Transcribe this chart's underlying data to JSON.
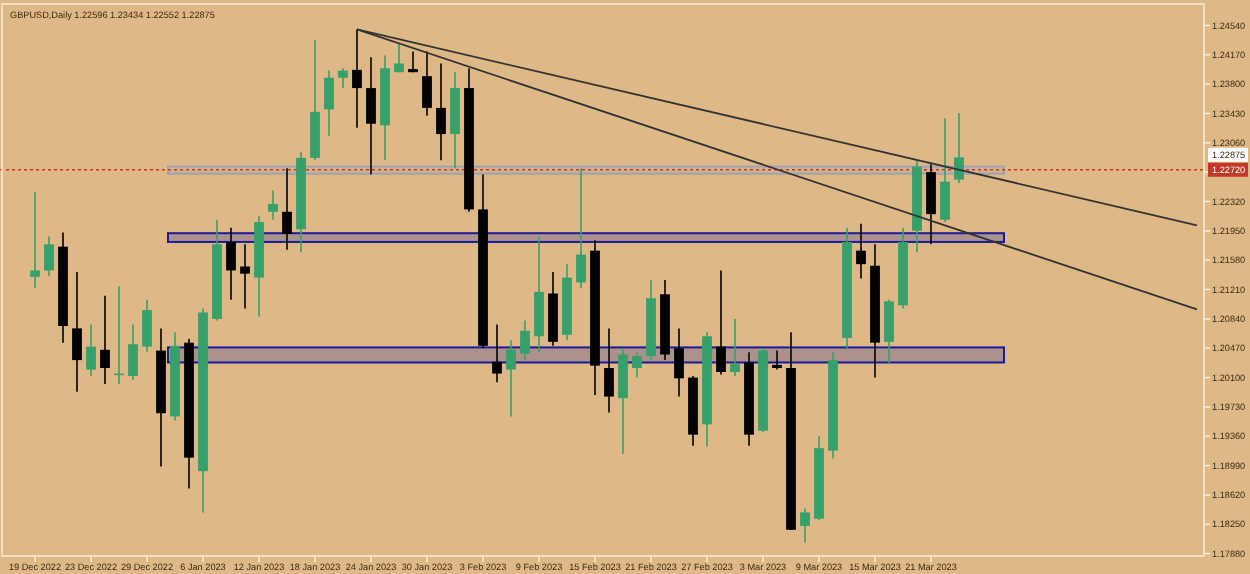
{
  "chart_data": {
    "type": "candlestick",
    "title": "GBPUSD,Daily 1.22596 1.23434 1.22552 1.22875",
    "categories": [
      "19 Dec 2022",
      null,
      null,
      null,
      "23 Dec 2022",
      null,
      null,
      null,
      "29 Dec 2022",
      null,
      null,
      null,
      "6 Jan 2023",
      null,
      null,
      null,
      "12 Jan 2023",
      null,
      null,
      null,
      "18 Jan 2023",
      null,
      null,
      null,
      "24 Jan 2023",
      null,
      null,
      null,
      "30 Jan 2023",
      null,
      null,
      null,
      "3 Feb 2023",
      null,
      null,
      null,
      "9 Feb 2023",
      null,
      null,
      null,
      "15 Feb 2023",
      null,
      null,
      null,
      "21 Feb 2023",
      null,
      null,
      null,
      "27 Feb 2023",
      null,
      null,
      null,
      "3 Mar 2023",
      null,
      null,
      null,
      "9 Mar 2023",
      null,
      null,
      null,
      "15 Mar 2023",
      null,
      null,
      null,
      "21 Mar 2023",
      null,
      null,
      null,
      null,
      null,
      null,
      null,
      null,
      null,
      null,
      null,
      null,
      null,
      null,
      null,
      null,
      null,
      null,
      null
    ],
    "ohlc": [
      [
        1.2137,
        1.2244,
        1.2123,
        1.2145
      ],
      [
        1.2145,
        1.2188,
        1.2138,
        1.2178
      ],
      [
        1.2175,
        1.2193,
        1.2054,
        1.2075
      ],
      [
        1.2072,
        1.2143,
        1.1992,
        1.2032
      ],
      [
        1.202,
        1.2077,
        1.2012,
        1.2049
      ],
      [
        1.2045,
        1.2113,
        1.2002,
        1.2022
      ],
      [
        1.2013,
        1.2125,
        1.2002,
        1.2015
      ],
      [
        1.2012,
        1.2077,
        1.2007,
        1.2052
      ],
      [
        1.2049,
        1.2108,
        1.2042,
        1.2095
      ],
      [
        1.2044,
        1.2072,
        1.1898,
        1.1965
      ],
      [
        1.1961,
        1.2067,
        1.1956,
        1.205
      ],
      [
        1.2054,
        1.2059,
        1.187,
        1.1909
      ],
      [
        1.1892,
        1.2097,
        1.184,
        1.2092
      ],
      [
        1.2084,
        1.2209,
        1.2082,
        1.2178
      ],
      [
        1.2181,
        1.2199,
        1.2108,
        1.2145
      ],
      [
        1.215,
        1.2178,
        1.2097,
        1.2141
      ],
      [
        1.2136,
        1.2214,
        1.2087,
        1.2206
      ],
      [
        1.2219,
        1.2246,
        1.2209,
        1.2229
      ],
      [
        1.2219,
        1.2274,
        1.2171,
        1.2191
      ],
      [
        1.2197,
        1.2294,
        1.2168,
        1.2287
      ],
      [
        1.2287,
        1.2436,
        1.2284,
        1.2345
      ],
      [
        1.2348,
        1.2397,
        1.2315,
        1.2388
      ],
      [
        1.2388,
        1.24,
        1.2375,
        1.2397
      ],
      [
        1.2398,
        1.2449,
        1.2325,
        1.2375
      ],
      [
        1.2375,
        1.2414,
        1.2266,
        1.233
      ],
      [
        1.2328,
        1.2416,
        1.2284,
        1.24
      ],
      [
        1.2395,
        1.2431,
        1.2395,
        1.2406
      ],
      [
        1.2399,
        1.2421,
        1.2395,
        1.2395
      ],
      [
        1.239,
        1.2421,
        1.234,
        1.235
      ],
      [
        1.235,
        1.2406,
        1.2284,
        1.2317
      ],
      [
        1.2317,
        1.2395,
        1.2274,
        1.2375
      ],
      [
        1.2375,
        1.24,
        1.2219,
        1.2222
      ],
      [
        1.2222,
        1.2266,
        1.2047,
        1.205
      ],
      [
        1.203,
        1.2077,
        1.2004,
        1.2015
      ],
      [
        1.202,
        1.2057,
        1.1961,
        1.2045
      ],
      [
        1.204,
        1.2082,
        1.2032,
        1.2069
      ],
      [
        1.2062,
        1.2188,
        1.2042,
        1.2118
      ],
      [
        1.2116,
        1.2143,
        1.205,
        1.2055
      ],
      [
        1.2064,
        1.2153,
        1.2057,
        1.2136
      ],
      [
        1.213,
        1.2274,
        1.2123,
        1.2165
      ],
      [
        1.217,
        1.2183,
        1.1988,
        1.2025
      ],
      [
        1.2022,
        1.2072,
        1.1966,
        1.1986
      ],
      [
        1.1984,
        1.2047,
        1.1914,
        1.2039
      ],
      [
        1.2022,
        1.2042,
        1.201,
        1.2037
      ],
      [
        1.2037,
        1.2133,
        1.2032,
        1.211
      ],
      [
        1.2115,
        1.2133,
        1.2032,
        1.2039
      ],
      [
        1.2047,
        1.2072,
        1.1986,
        1.2009
      ],
      [
        1.201,
        1.2012,
        1.1924,
        1.1938
      ],
      [
        1.1951,
        1.2067,
        1.1923,
        1.2062
      ],
      [
        1.2049,
        1.2145,
        1.2014,
        1.2017
      ],
      [
        1.2017,
        1.2084,
        1.2012,
        1.2027
      ],
      [
        1.2029,
        1.2042,
        1.1924,
        1.1938
      ],
      [
        1.1943,
        1.2047,
        1.1941,
        1.2044
      ],
      [
        1.2026,
        1.2044,
        1.202,
        1.2022
      ],
      [
        1.2022,
        1.2067,
        1.1818,
        1.1818
      ],
      [
        1.1823,
        1.1845,
        1.1802,
        1.184
      ],
      [
        1.1832,
        1.1936,
        1.183,
        1.1921
      ],
      [
        1.1918,
        1.2042,
        1.1908,
        1.2032
      ],
      [
        1.206,
        1.2199,
        1.2047,
        1.2181
      ],
      [
        1.217,
        1.2204,
        1.2135,
        1.2153
      ],
      [
        1.2151,
        1.2178,
        1.201,
        1.2054
      ],
      [
        1.2055,
        1.2108,
        1.2027,
        1.2106
      ],
      [
        1.2101,
        1.2199,
        1.2097,
        1.2181
      ],
      [
        1.2195,
        1.2284,
        1.2168,
        1.2276
      ],
      [
        1.2269,
        1.2279,
        1.2178,
        1.2216
      ],
      [
        1.2209,
        1.2337,
        1.2206,
        1.2257
      ],
      [
        1.22596,
        1.23434,
        1.22552,
        1.22875
      ],
      null,
      null,
      null,
      null,
      null,
      null,
      null,
      null,
      null,
      null,
      null,
      null,
      null,
      null,
      null,
      null,
      null
    ],
    "colors": [
      "#36a06a",
      "#36a06a",
      "#000000",
      "#000000",
      "#36a06a",
      "#000000",
      "#36a06a",
      "#36a06a",
      "#36a06a",
      "#000000",
      "#36a06a",
      "#000000",
      "#36a06a",
      "#36a06a",
      "#000000",
      "#000000",
      "#36a06a",
      "#36a06a",
      "#000000",
      "#36a06a",
      "#36a06a",
      "#36a06a",
      "#36a06a",
      "#000000",
      "#000000",
      "#36a06a",
      "#36a06a",
      "#000000",
      "#000000",
      "#000000",
      "#36a06a",
      "#000000",
      "#000000",
      "#000000",
      "#36a06a",
      "#36a06a",
      "#36a06a",
      "#000000",
      "#36a06a",
      "#36a06a",
      "#000000",
      "#000000",
      "#36a06a",
      "#36a06a",
      "#36a06a",
      "#000000",
      "#000000",
      "#000000",
      "#36a06a",
      "#000000",
      "#36a06a",
      "#000000",
      "#36a06a",
      "#000000",
      "#000000",
      "#36a06a",
      "#36a06a",
      "#36a06a",
      "#36a06a",
      "#000000",
      "#000000",
      "#36a06a",
      "#36a06a",
      "#36a06a",
      "#000000",
      "#36a06a",
      "#36a06a",
      null,
      null,
      null,
      null,
      null,
      null,
      null,
      null,
      null,
      null,
      null,
      null,
      null,
      null,
      null,
      null,
      null
    ],
    "series": [
      {
        "type": "line",
        "color": "#333333",
        "values": [
          null,
          null,
          null,
          null,
          null,
          null,
          null,
          null,
          null,
          null,
          null,
          null,
          null,
          null,
          null,
          null,
          null,
          null,
          null,
          null,
          null,
          null,
          null,
          1.2449,
          null,
          null,
          null,
          null,
          null,
          null,
          null,
          null,
          null,
          null,
          null,
          null,
          null,
          null,
          null,
          null,
          null,
          null,
          null,
          null,
          null,
          null,
          null,
          null,
          null,
          null,
          null,
          null,
          null,
          null,
          null,
          null,
          null,
          null,
          null,
          null,
          null,
          null,
          null,
          null,
          null,
          null,
          null,
          null,
          null,
          null,
          null,
          null,
          null,
          null,
          null,
          null,
          null,
          null,
          null,
          null,
          null,
          null,
          null,
          1.2202
        ]
      },
      {
        "type": "line",
        "color": "#333333",
        "values": [
          null,
          null,
          null,
          null,
          null,
          null,
          null,
          null,
          null,
          null,
          null,
          null,
          null,
          null,
          null,
          null,
          null,
          null,
          null,
          null,
          null,
          null,
          null,
          1.2449,
          null,
          null,
          null,
          null,
          null,
          null,
          null,
          null,
          null,
          null,
          null,
          null,
          null,
          null,
          null,
          null,
          null,
          null,
          null,
          null,
          null,
          null,
          null,
          null,
          null,
          null,
          null,
          null,
          null,
          null,
          null,
          null,
          null,
          null,
          null,
          null,
          null,
          null,
          null,
          null,
          null,
          null,
          null,
          null,
          null,
          null,
          null,
          null,
          null,
          null,
          null,
          null,
          null,
          null,
          null,
          null,
          null,
          null,
          null,
          1.2096
        ]
      }
    ],
    "ylim": [
      1.1785,
      1.2481
    ],
    "yticks": [
      {
        "value": 1.2454,
        "label": "1.24540"
      },
      {
        "value": 1.2417,
        "label": "1.24170"
      },
      {
        "value": 1.238,
        "label": "1.23800"
      },
      {
        "value": 1.2343,
        "label": "1.23430"
      },
      {
        "value": 1.2306,
        "label": "1.23060"
      },
      {
        "value": 1.2269,
        "label": null
      },
      {
        "value": 1.2232,
        "label": "1.22320"
      },
      {
        "value": 1.2195,
        "label": "1.21950"
      },
      {
        "value": 1.2158,
        "label": "1.21580"
      },
      {
        "value": 1.2121,
        "label": "1.21210"
      },
      {
        "value": 1.2084,
        "label": "1.20840"
      },
      {
        "value": 1.2047,
        "label": "1.20470"
      },
      {
        "value": 1.201,
        "label": "1.20100"
      },
      {
        "value": 1.1973,
        "label": "1.19730"
      },
      {
        "value": 1.1936,
        "label": "1.19360"
      },
      {
        "value": 1.1899,
        "label": "1.18990"
      },
      {
        "value": 1.1862,
        "label": "1.18620"
      },
      {
        "value": 1.1825,
        "label": "1.18250"
      },
      {
        "value": 1.1788,
        "label": "1.17880"
      }
    ],
    "ref_lines": [
      {
        "axis": "y",
        "value": 1.2272,
        "label": "1.22720",
        "color": "#c0392b",
        "line_style": "dotted"
      }
    ],
    "bands": [
      {
        "axis": "y",
        "from": 1.2267,
        "to": 1.2276,
        "color": "#a0a4b0"
      },
      {
        "axis": "y",
        "from": 1.2181,
        "to": 1.2192,
        "color": "#1a1a9a"
      },
      {
        "axis": "y",
        "from": 1.2029,
        "to": 1.2048,
        "color": "#1a1a9a"
      }
    ],
    "annotations": [
      "1.22875"
    ]
  }
}
